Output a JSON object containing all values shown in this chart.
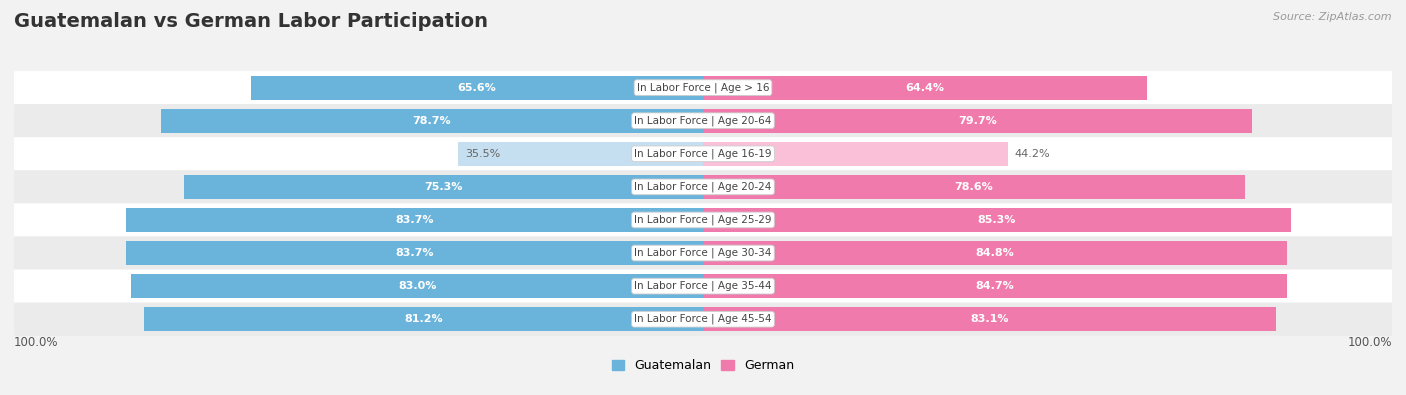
{
  "title": "Guatemalan vs German Labor Participation",
  "source": "Source: ZipAtlas.com",
  "categories": [
    "In Labor Force | Age > 16",
    "In Labor Force | Age 20-64",
    "In Labor Force | Age 16-19",
    "In Labor Force | Age 20-24",
    "In Labor Force | Age 25-29",
    "In Labor Force | Age 30-34",
    "In Labor Force | Age 35-44",
    "In Labor Force | Age 45-54"
  ],
  "guatemalan_values": [
    65.6,
    78.7,
    35.5,
    75.3,
    83.7,
    83.7,
    83.0,
    81.2
  ],
  "german_values": [
    64.4,
    79.7,
    44.2,
    78.6,
    85.3,
    84.8,
    84.7,
    83.1
  ],
  "guatemalan_color_dark": "#6ab4dc",
  "guatemalan_color_light": "#c5dff0",
  "german_color_dark": "#f07aab",
  "german_color_light": "#f9c0d8",
  "label_color_white": "#ffffff",
  "label_color_dark": "#666666",
  "title_fontsize": 14,
  "bar_label_fontsize": 8,
  "category_fontsize": 7.5,
  "legend_fontsize": 9,
  "axis_label_fontsize": 8.5,
  "bar_height": 0.72
}
